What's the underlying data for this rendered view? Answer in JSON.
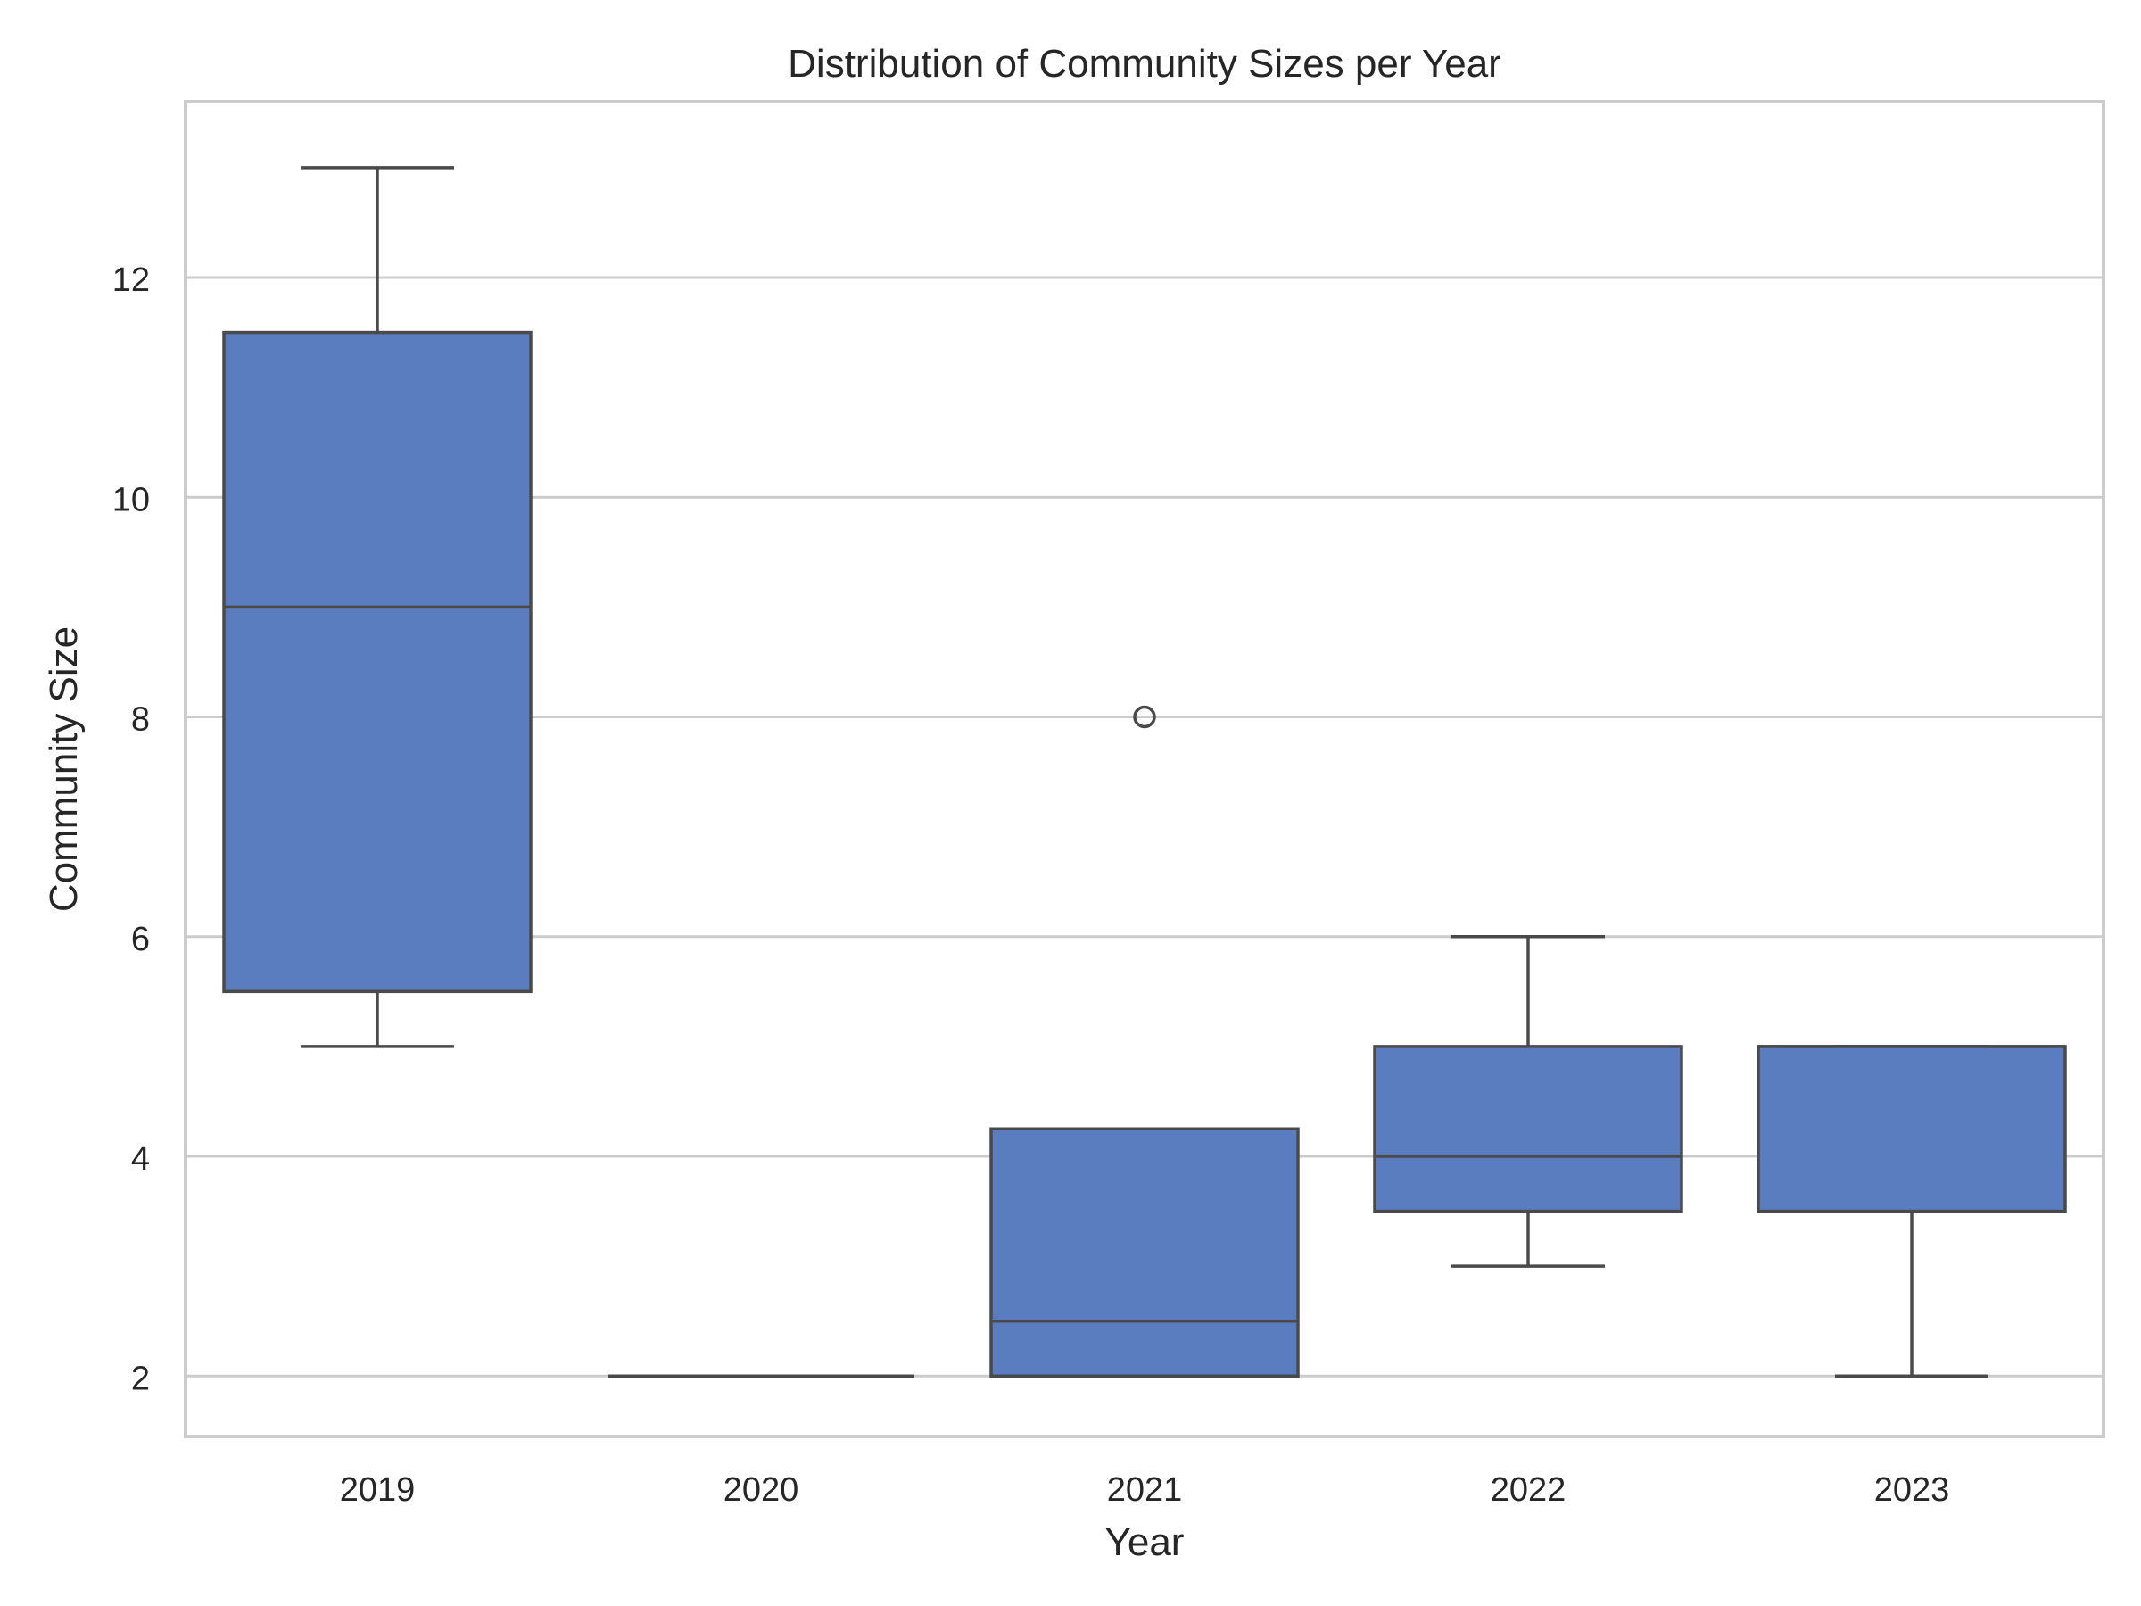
{
  "chart_data": {
    "type": "box",
    "title": "Distribution of Community Sizes per Year",
    "xlabel": "Year",
    "ylabel": "Community Size",
    "categories": [
      "2019",
      "2020",
      "2021",
      "2022",
      "2023"
    ],
    "ylim": [
      1.45,
      13.6
    ],
    "yticks": [
      2,
      4,
      6,
      8,
      10,
      12
    ],
    "grid": "horizontal",
    "boxes": [
      {
        "category": "2019",
        "whisker_low": 5,
        "q1": 5.5,
        "median": 9,
        "q3": 11.5,
        "whisker_high": 13,
        "outliers": []
      },
      {
        "category": "2020",
        "whisker_low": 2,
        "q1": 2,
        "median": 2,
        "q3": 2,
        "whisker_high": 2,
        "outliers": []
      },
      {
        "category": "2021",
        "whisker_low": 2,
        "q1": 2,
        "median": 2.5,
        "q3": 4.25,
        "whisker_high": 4.25,
        "outliers": [
          8
        ]
      },
      {
        "category": "2022",
        "whisker_low": 3,
        "q1": 3.5,
        "median": 4,
        "q3": 5,
        "whisker_high": 6,
        "outliers": []
      },
      {
        "category": "2023",
        "whisker_low": 2,
        "q1": 3.5,
        "median": 5,
        "q3": 5,
        "whisker_high": 5,
        "outliers": []
      }
    ],
    "colors": {
      "box_fill": "#5a7dbf",
      "line": "#4a4a4a",
      "grid": "#cccccc",
      "frame": "#cccccc"
    }
  }
}
